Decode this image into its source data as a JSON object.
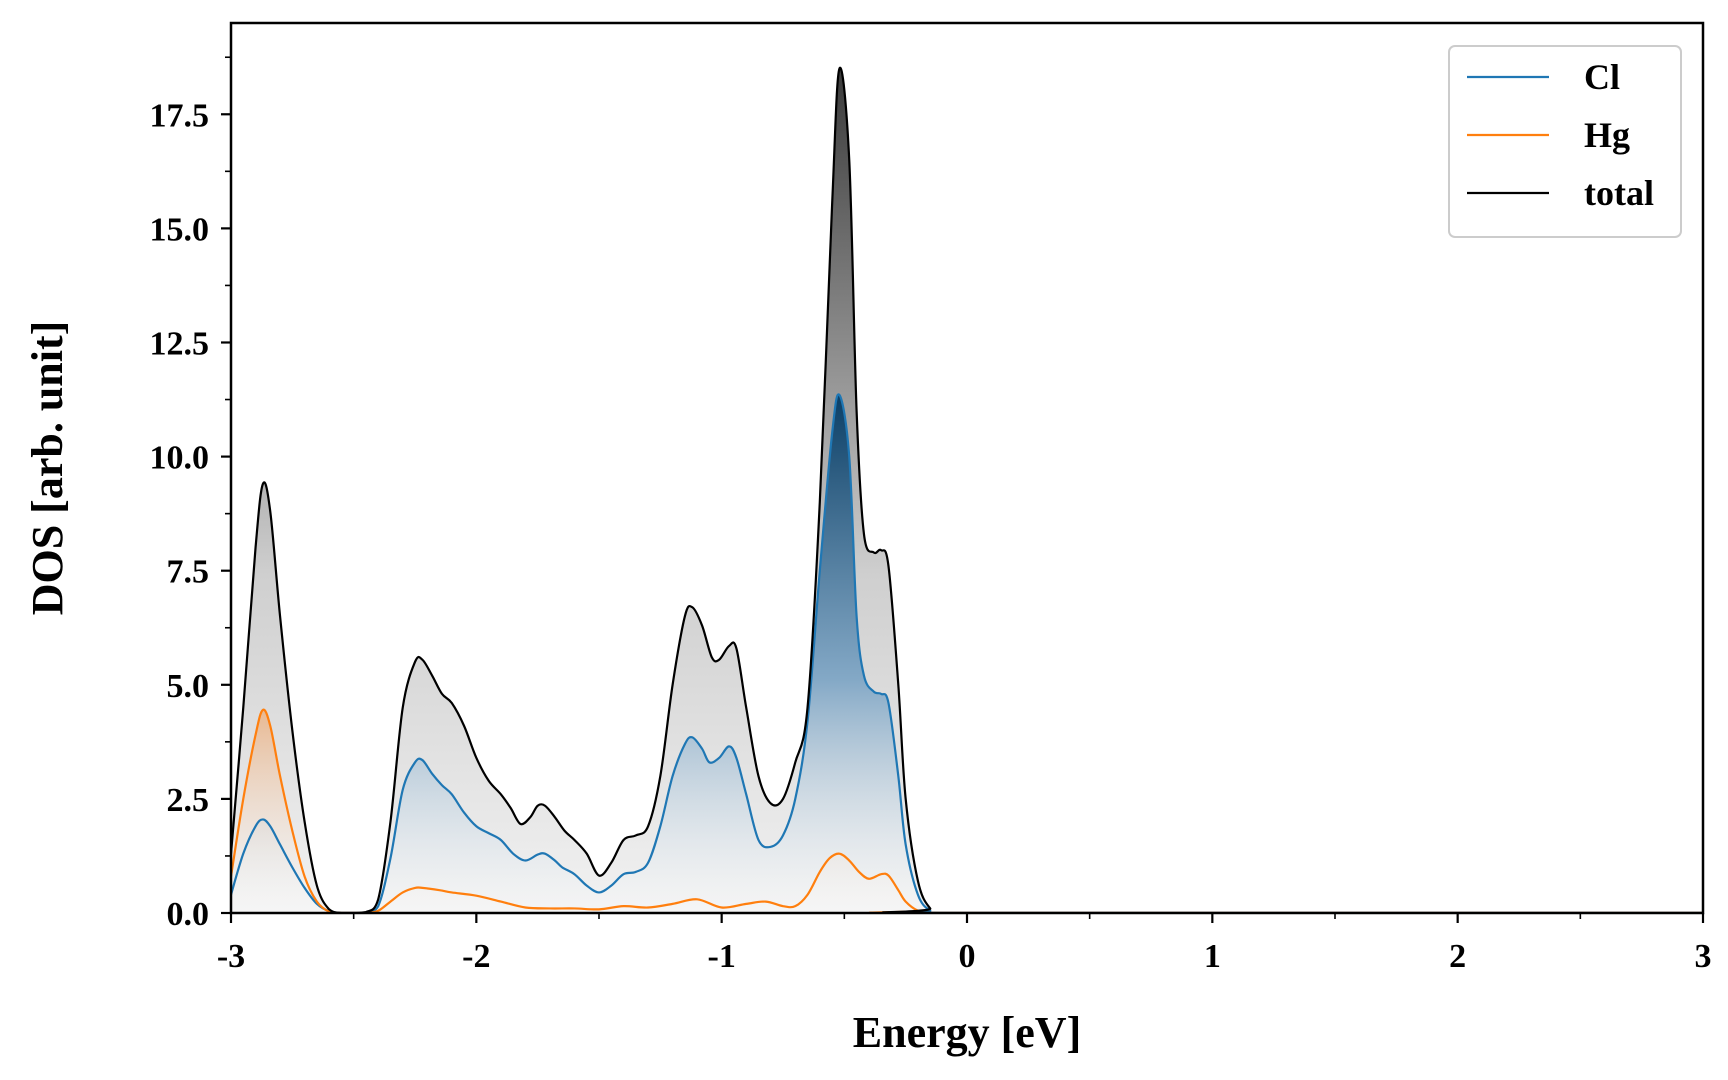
{
  "chart_data": {
    "type": "area",
    "xlabel": "Energy [eV]",
    "ylabel": "DOS [arb. unit]",
    "xlim": [
      -3,
      3
    ],
    "ylim": [
      0,
      19.5
    ],
    "xticks": [
      -3,
      -2,
      -1,
      0,
      1,
      2,
      3
    ],
    "xtick_labels": [
      "-3",
      "-2",
      "-1",
      "0",
      "1",
      "2",
      "3"
    ],
    "yticks": [
      0,
      2.5,
      5,
      7.5,
      10,
      12.5,
      15,
      17.5
    ],
    "ytick_labels": [
      "0.0",
      "2.5",
      "5.0",
      "7.5",
      "10.0",
      "12.5",
      "15.0",
      "17.5"
    ],
    "legend_position": "top-right",
    "grid": false,
    "series": [
      {
        "name": "Cl",
        "color": "#1f77b4",
        "x": [
          -3.0,
          -2.95,
          -2.9,
          -2.87,
          -2.84,
          -2.8,
          -2.75,
          -2.7,
          -2.65,
          -2.6,
          -2.55,
          -2.5,
          -2.45,
          -2.4,
          -2.35,
          -2.3,
          -2.25,
          -2.22,
          -2.18,
          -2.14,
          -2.1,
          -2.05,
          -2.0,
          -1.95,
          -1.9,
          -1.85,
          -1.8,
          -1.75,
          -1.72,
          -1.68,
          -1.65,
          -1.6,
          -1.55,
          -1.5,
          -1.45,
          -1.4,
          -1.35,
          -1.3,
          -1.25,
          -1.2,
          -1.15,
          -1.12,
          -1.08,
          -1.05,
          -1.01,
          -0.97,
          -0.94,
          -0.9,
          -0.85,
          -0.8,
          -0.75,
          -0.7,
          -0.65,
          -0.6,
          -0.55,
          -0.52,
          -0.48,
          -0.45,
          -0.42,
          -0.38,
          -0.35,
          -0.32,
          -0.28,
          -0.25,
          -0.2,
          -0.15,
          -0.1,
          3.0
        ],
        "values": [
          0.4,
          1.3,
          1.9,
          2.05,
          1.9,
          1.5,
          1.0,
          0.55,
          0.2,
          0.04,
          0.0,
          0.0,
          0.01,
          0.15,
          1.2,
          2.7,
          3.3,
          3.35,
          3.05,
          2.8,
          2.6,
          2.2,
          1.9,
          1.75,
          1.6,
          1.3,
          1.15,
          1.28,
          1.3,
          1.15,
          1.0,
          0.85,
          0.6,
          0.45,
          0.6,
          0.85,
          0.9,
          1.1,
          1.9,
          3.0,
          3.7,
          3.85,
          3.6,
          3.3,
          3.4,
          3.65,
          3.4,
          2.6,
          1.6,
          1.45,
          1.7,
          2.5,
          4.2,
          7.5,
          10.5,
          11.35,
          10.0,
          6.5,
          5.2,
          4.85,
          4.8,
          4.6,
          3.0,
          1.5,
          0.4,
          0.05,
          0.0,
          0.0
        ]
      },
      {
        "name": "Hg",
        "color": "#ff7f0e",
        "x": [
          -3.0,
          -2.95,
          -2.9,
          -2.87,
          -2.84,
          -2.8,
          -2.75,
          -2.7,
          -2.65,
          -2.6,
          -2.55,
          -2.5,
          -2.45,
          -2.4,
          -2.35,
          -2.3,
          -2.25,
          -2.22,
          -2.15,
          -2.1,
          -2.0,
          -1.9,
          -1.8,
          -1.7,
          -1.6,
          -1.5,
          -1.4,
          -1.3,
          -1.2,
          -1.1,
          -1.0,
          -0.9,
          -0.82,
          -0.75,
          -0.7,
          -0.65,
          -0.6,
          -0.56,
          -0.52,
          -0.48,
          -0.44,
          -0.4,
          -0.35,
          -0.32,
          -0.28,
          -0.25,
          -0.2,
          -0.15,
          3.0
        ],
        "values": [
          0.8,
          2.5,
          3.9,
          4.45,
          4.1,
          3.0,
          1.8,
          0.8,
          0.25,
          0.03,
          0.0,
          0.0,
          0.0,
          0.05,
          0.25,
          0.45,
          0.55,
          0.55,
          0.5,
          0.45,
          0.38,
          0.25,
          0.12,
          0.1,
          0.1,
          0.08,
          0.15,
          0.12,
          0.2,
          0.3,
          0.12,
          0.2,
          0.25,
          0.15,
          0.15,
          0.4,
          0.9,
          1.2,
          1.3,
          1.15,
          0.9,
          0.75,
          0.85,
          0.82,
          0.5,
          0.25,
          0.05,
          0.0,
          0.0
        ]
      },
      {
        "name": "total",
        "color": "#000000",
        "x": [
          -3.0,
          -2.95,
          -2.9,
          -2.87,
          -2.84,
          -2.8,
          -2.75,
          -2.7,
          -2.65,
          -2.6,
          -2.55,
          -2.5,
          -2.45,
          -2.4,
          -2.35,
          -2.3,
          -2.25,
          -2.22,
          -2.18,
          -2.14,
          -2.1,
          -2.05,
          -2.0,
          -1.95,
          -1.9,
          -1.86,
          -1.82,
          -1.78,
          -1.75,
          -1.72,
          -1.68,
          -1.64,
          -1.6,
          -1.55,
          -1.5,
          -1.45,
          -1.4,
          -1.35,
          -1.3,
          -1.25,
          -1.2,
          -1.15,
          -1.12,
          -1.08,
          -1.04,
          -1.01,
          -0.97,
          -0.94,
          -0.9,
          -0.85,
          -0.8,
          -0.75,
          -0.7,
          -0.65,
          -0.6,
          -0.55,
          -0.52,
          -0.48,
          -0.45,
          -0.42,
          -0.38,
          -0.35,
          -0.32,
          -0.28,
          -0.25,
          -0.2,
          -0.15,
          -0.1,
          3.0
        ],
        "values": [
          1.3,
          4.5,
          8.0,
          9.4,
          8.8,
          6.5,
          4.0,
          2.0,
          0.6,
          0.08,
          0.0,
          0.0,
          0.02,
          0.3,
          2.0,
          4.5,
          5.5,
          5.55,
          5.2,
          4.8,
          4.6,
          4.1,
          3.4,
          2.9,
          2.6,
          2.3,
          1.95,
          2.1,
          2.35,
          2.35,
          2.1,
          1.8,
          1.6,
          1.3,
          0.82,
          1.1,
          1.6,
          1.7,
          1.9,
          3.0,
          5.0,
          6.5,
          6.7,
          6.3,
          5.6,
          5.55,
          5.85,
          5.8,
          4.5,
          3.0,
          2.4,
          2.5,
          3.3,
          4.5,
          9.0,
          15.5,
          18.5,
          16.5,
          11.0,
          8.3,
          7.9,
          7.95,
          7.6,
          5.0,
          2.5,
          0.7,
          0.1,
          0.0,
          0.0
        ]
      }
    ]
  }
}
